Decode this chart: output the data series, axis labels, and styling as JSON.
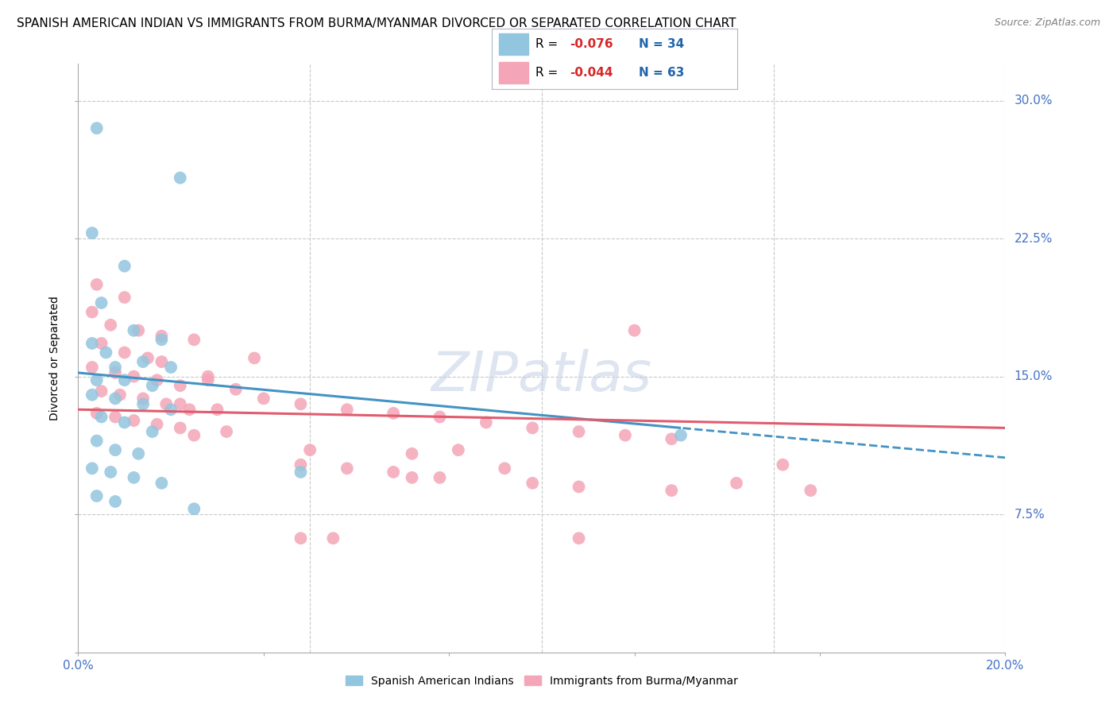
{
  "title": "SPANISH AMERICAN INDIAN VS IMMIGRANTS FROM BURMA/MYANMAR DIVORCED OR SEPARATED CORRELATION CHART",
  "source": "Source: ZipAtlas.com",
  "ylabel": "Divorced or Separated",
  "watermark": "ZIPatlas",
  "xlim": [
    0.0,
    0.2
  ],
  "ylim": [
    0.0,
    0.32
  ],
  "xtick_positions": [
    0.0,
    0.04,
    0.08,
    0.12,
    0.16,
    0.2
  ],
  "xtick_labels": [
    "0.0%",
    "",
    "",
    "",
    "",
    "20.0%"
  ],
  "ytick_positions": [
    0.0,
    0.075,
    0.15,
    0.225,
    0.3
  ],
  "ytick_labels": [
    "",
    "7.5%",
    "15.0%",
    "22.5%",
    "30.0%"
  ],
  "legend1_r": "-0.076",
  "legend1_n": "34",
  "legend2_r": "-0.044",
  "legend2_n": "63",
  "blue_color": "#92c5de",
  "pink_color": "#f4a6b8",
  "blue_line_color": "#4393c3",
  "pink_line_color": "#e05c6e",
  "grid_color": "#c8c8c8",
  "blue_scatter": [
    [
      0.004,
      0.285
    ],
    [
      0.022,
      0.258
    ],
    [
      0.003,
      0.228
    ],
    [
      0.01,
      0.21
    ],
    [
      0.005,
      0.19
    ],
    [
      0.012,
      0.175
    ],
    [
      0.003,
      0.168
    ],
    [
      0.018,
      0.17
    ],
    [
      0.006,
      0.163
    ],
    [
      0.014,
      0.158
    ],
    [
      0.008,
      0.155
    ],
    [
      0.02,
      0.155
    ],
    [
      0.004,
      0.148
    ],
    [
      0.01,
      0.148
    ],
    [
      0.016,
      0.145
    ],
    [
      0.003,
      0.14
    ],
    [
      0.008,
      0.138
    ],
    [
      0.014,
      0.135
    ],
    [
      0.02,
      0.132
    ],
    [
      0.005,
      0.128
    ],
    [
      0.01,
      0.125
    ],
    [
      0.016,
      0.12
    ],
    [
      0.004,
      0.115
    ],
    [
      0.008,
      0.11
    ],
    [
      0.013,
      0.108
    ],
    [
      0.003,
      0.1
    ],
    [
      0.007,
      0.098
    ],
    [
      0.012,
      0.095
    ],
    [
      0.018,
      0.092
    ],
    [
      0.004,
      0.085
    ],
    [
      0.008,
      0.082
    ],
    [
      0.025,
      0.078
    ],
    [
      0.13,
      0.118
    ],
    [
      0.048,
      0.098
    ]
  ],
  "pink_scatter": [
    [
      0.004,
      0.2
    ],
    [
      0.01,
      0.193
    ],
    [
      0.003,
      0.185
    ],
    [
      0.007,
      0.178
    ],
    [
      0.013,
      0.175
    ],
    [
      0.018,
      0.172
    ],
    [
      0.005,
      0.168
    ],
    [
      0.01,
      0.163
    ],
    [
      0.015,
      0.16
    ],
    [
      0.003,
      0.155
    ],
    [
      0.008,
      0.152
    ],
    [
      0.012,
      0.15
    ],
    [
      0.017,
      0.148
    ],
    [
      0.022,
      0.145
    ],
    [
      0.005,
      0.142
    ],
    [
      0.009,
      0.14
    ],
    [
      0.014,
      0.138
    ],
    [
      0.019,
      0.135
    ],
    [
      0.024,
      0.132
    ],
    [
      0.004,
      0.13
    ],
    [
      0.008,
      0.128
    ],
    [
      0.012,
      0.126
    ],
    [
      0.017,
      0.124
    ],
    [
      0.022,
      0.122
    ],
    [
      0.028,
      0.148
    ],
    [
      0.034,
      0.143
    ],
    [
      0.04,
      0.138
    ],
    [
      0.048,
      0.135
    ],
    [
      0.058,
      0.132
    ],
    [
      0.068,
      0.13
    ],
    [
      0.078,
      0.128
    ],
    [
      0.088,
      0.125
    ],
    [
      0.098,
      0.122
    ],
    [
      0.108,
      0.12
    ],
    [
      0.118,
      0.118
    ],
    [
      0.128,
      0.116
    ],
    [
      0.048,
      0.102
    ],
    [
      0.058,
      0.1
    ],
    [
      0.068,
      0.098
    ],
    [
      0.078,
      0.095
    ],
    [
      0.025,
      0.17
    ],
    [
      0.038,
      0.16
    ],
    [
      0.05,
      0.11
    ],
    [
      0.12,
      0.175
    ],
    [
      0.152,
      0.102
    ],
    [
      0.142,
      0.092
    ],
    [
      0.158,
      0.088
    ],
    [
      0.055,
      0.062
    ],
    [
      0.025,
      0.118
    ],
    [
      0.022,
      0.135
    ],
    [
      0.03,
      0.132
    ],
    [
      0.018,
      0.158
    ],
    [
      0.028,
      0.15
    ],
    [
      0.032,
      0.12
    ],
    [
      0.072,
      0.108
    ],
    [
      0.092,
      0.1
    ],
    [
      0.098,
      0.092
    ],
    [
      0.108,
      0.09
    ],
    [
      0.128,
      0.088
    ],
    [
      0.072,
      0.095
    ],
    [
      0.082,
      0.11
    ],
    [
      0.108,
      0.062
    ],
    [
      0.048,
      0.062
    ]
  ],
  "title_fontsize": 11,
  "axis_label_fontsize": 10,
  "tick_fontsize": 11,
  "watermark_fontsize": 50,
  "watermark_color": "#c8d4e8",
  "watermark_alpha": 0.6
}
